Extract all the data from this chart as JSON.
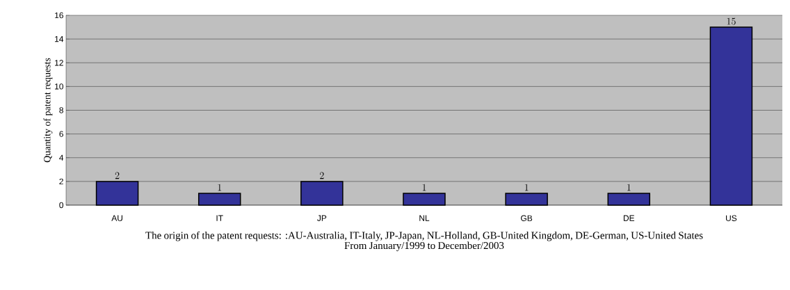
{
  "chart_data": {
    "type": "bar",
    "categories": [
      "AU",
      "IT",
      "JP",
      "NL",
      "GB",
      "DE",
      "US"
    ],
    "values": [
      2,
      1,
      2,
      1,
      1,
      1,
      15
    ],
    "color": "#333399",
    "ylabel": "Quantity of patent requests",
    "xlabel": "The origin of the patent requests: :AU-Australia, IT-Italy, JP-Japan, NL-Holland, GB-United Kingdom, DE-German, US-United States",
    "annotations": [
      "From January/1999 to December/2003"
    ],
    "ylim": [
      0,
      16
    ],
    "yticks": [
      0,
      2,
      4,
      6,
      8,
      10,
      12,
      14,
      16
    ],
    "grid": "y",
    "data_labels": true
  }
}
